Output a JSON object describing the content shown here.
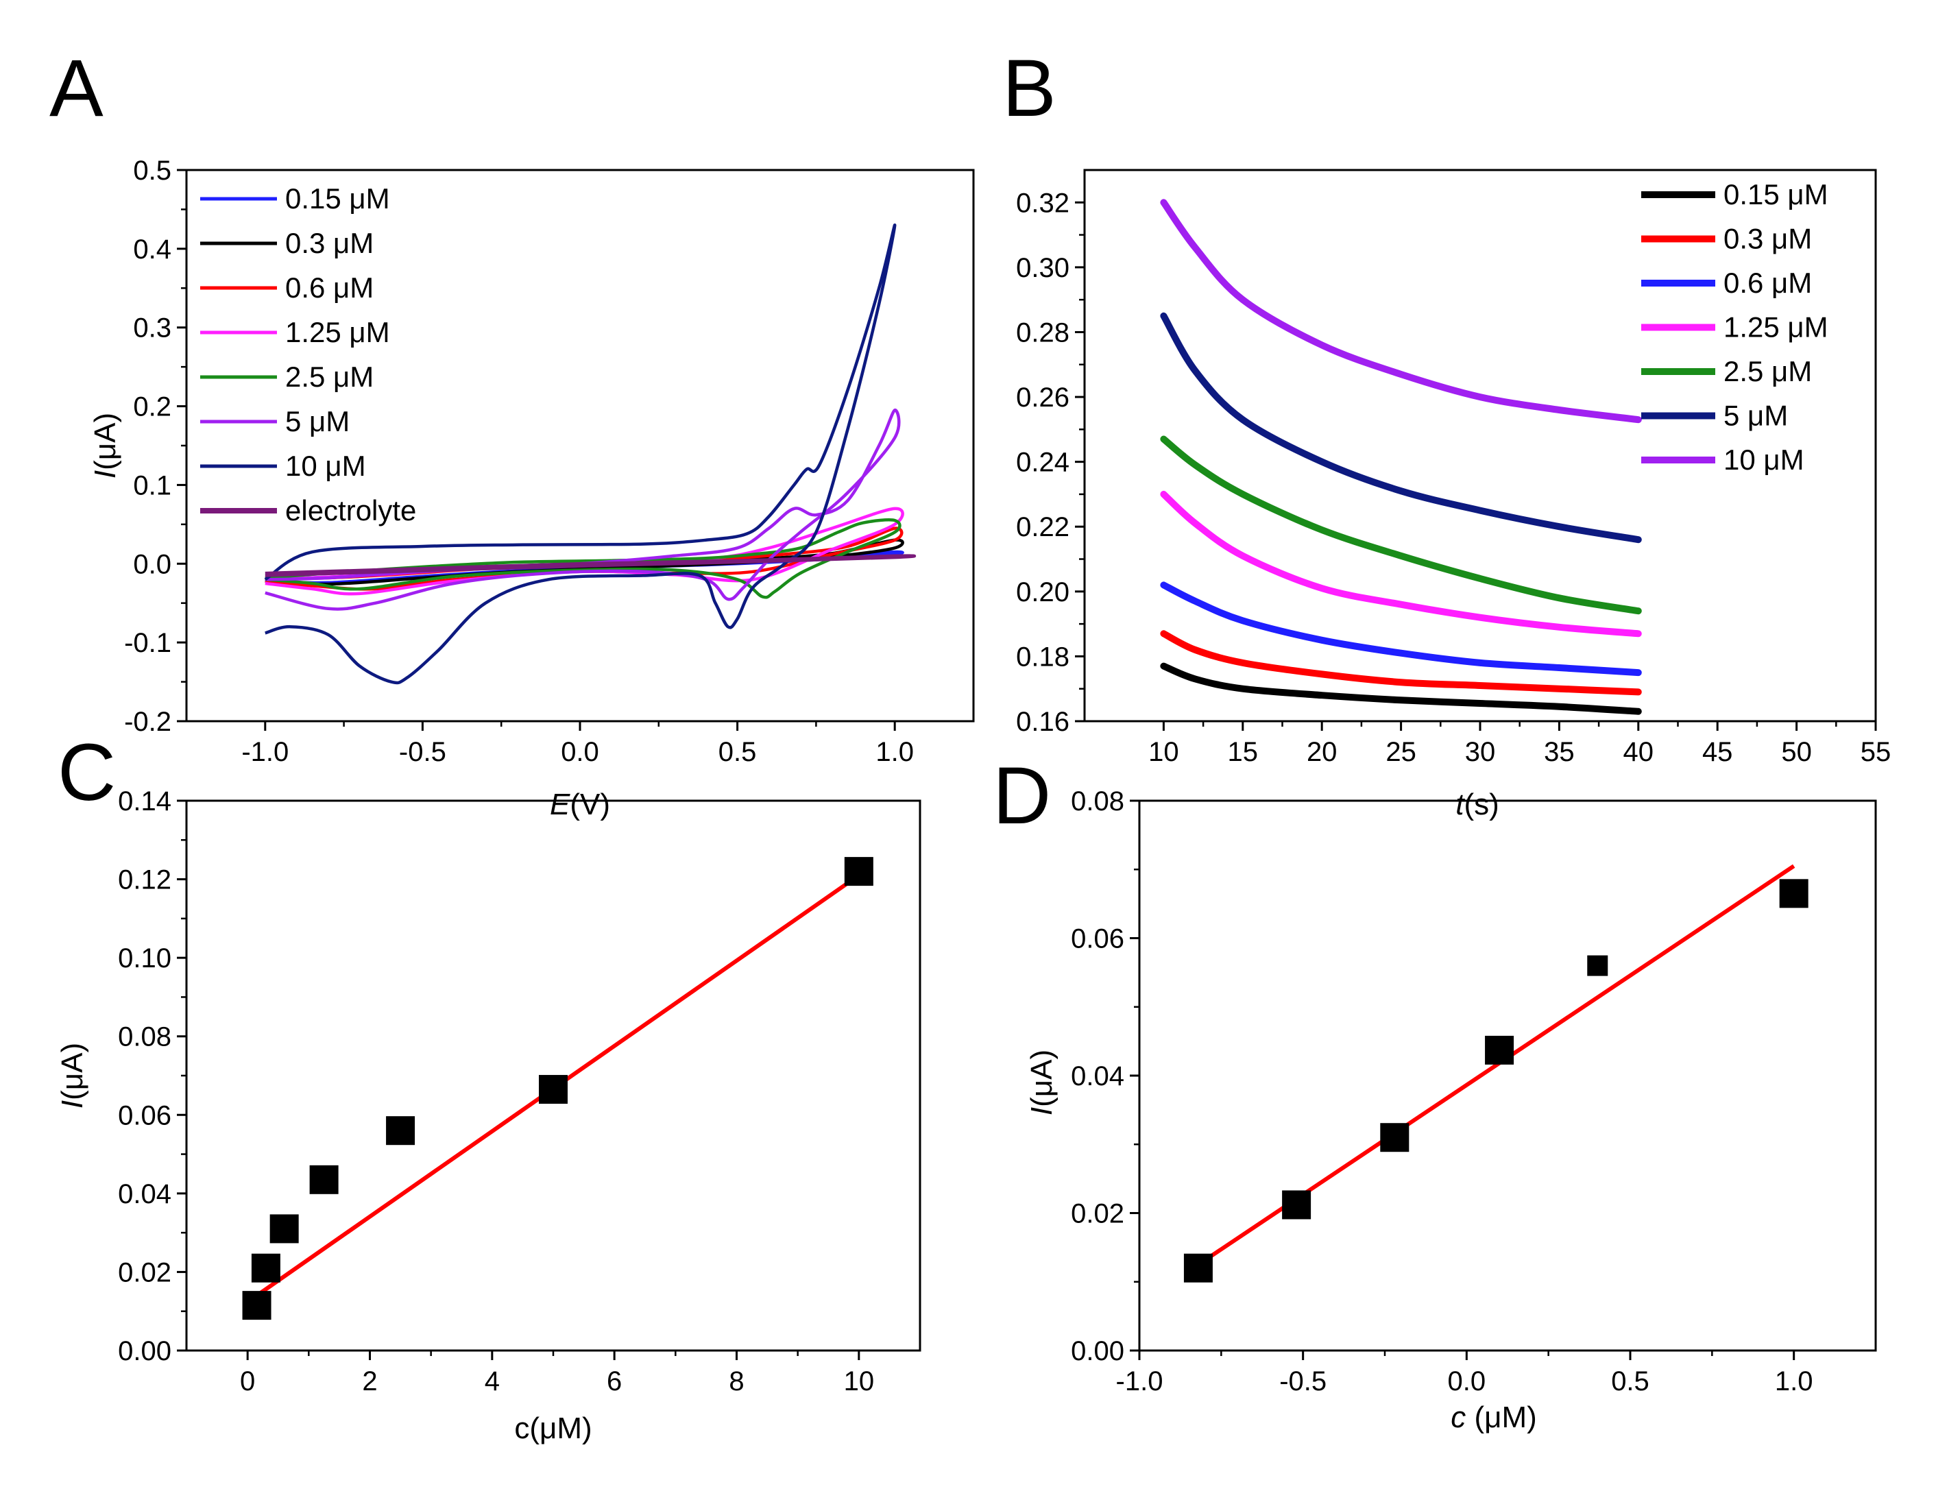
{
  "panels": {
    "A": {
      "letter": "A"
    },
    "B": {
      "letter": "B"
    },
    "C": {
      "letter": "C"
    },
    "D": {
      "letter": "D"
    }
  },
  "chart_data": [
    {
      "id": "A",
      "type": "line",
      "title": "",
      "xlabel_italic": "E",
      "xlabel_rest": "(V)",
      "ylabel_italic": "I",
      "ylabel_rest": "(μA)",
      "xlim": [
        -1.25,
        1.25
      ],
      "ylim": [
        -0.2,
        0.5
      ],
      "xticks": [
        -1.0,
        -0.5,
        0.0,
        0.5,
        1.0
      ],
      "xtick_labels": [
        "-1.0",
        "-0.5",
        "0.0",
        "0.5",
        "1.0"
      ],
      "yticks": [
        -0.2,
        -0.1,
        0.0,
        0.1,
        0.2,
        0.3,
        0.4,
        0.5
      ],
      "ytick_labels": [
        "-0.2",
        "-0.1",
        "0.0",
        "0.1",
        "0.2",
        "0.3",
        "0.4",
        "0.5"
      ],
      "legend_position": "top-left",
      "series": [
        {
          "name": "0.15 μM",
          "color": "#1f1fff",
          "x": [
            -1.0,
            -0.7,
            -0.4,
            0.0,
            0.4,
            0.6,
            0.8,
            1.0,
            1.0,
            0.8,
            0.5,
            0.2,
            -0.2,
            -0.5,
            -0.8,
            -1.0
          ],
          "y": [
            -0.02,
            -0.015,
            -0.006,
            0.0,
            0.004,
            0.006,
            0.01,
            0.015,
            0.012,
            0.006,
            0.0,
            -0.004,
            -0.009,
            -0.016,
            -0.024,
            -0.022
          ]
        },
        {
          "name": "0.3 μM",
          "color": "#000000",
          "x": [
            -1.0,
            -0.7,
            -0.4,
            0.0,
            0.4,
            0.6,
            0.8,
            1.0,
            1.0,
            0.8,
            0.5,
            0.2,
            -0.2,
            -0.5,
            -0.8,
            -1.0
          ],
          "y": [
            -0.02,
            -0.016,
            -0.006,
            0.0,
            0.004,
            0.007,
            0.013,
            0.03,
            0.02,
            0.009,
            0.001,
            -0.004,
            -0.01,
            -0.018,
            -0.026,
            -0.022
          ]
        },
        {
          "name": "0.6 μM",
          "color": "#ff0000",
          "x": [
            -1.0,
            -0.8,
            -0.6,
            -0.3,
            0.0,
            0.4,
            0.65,
            0.85,
            1.0,
            1.0,
            0.8,
            0.55,
            0.3,
            0.0,
            -0.4,
            -0.65,
            -0.85,
            -1.0
          ],
          "y": [
            -0.02,
            -0.018,
            -0.014,
            -0.006,
            0.0,
            0.005,
            0.012,
            0.022,
            0.045,
            0.03,
            0.012,
            -0.01,
            -0.012,
            -0.01,
            -0.02,
            -0.032,
            -0.028,
            -0.022
          ]
        },
        {
          "name": "1.25 μM",
          "color": "#ff1fff",
          "x": [
            -1.0,
            -0.8,
            -0.6,
            -0.3,
            0.0,
            0.4,
            0.6,
            0.8,
            1.0,
            1.0,
            0.8,
            0.55,
            0.3,
            0.0,
            -0.4,
            -0.7,
            -0.85,
            -1.0
          ],
          "y": [
            -0.02,
            -0.017,
            -0.013,
            -0.005,
            0.0,
            0.006,
            0.02,
            0.045,
            0.07,
            0.05,
            0.018,
            -0.02,
            -0.014,
            -0.01,
            -0.022,
            -0.038,
            -0.032,
            -0.025
          ]
        },
        {
          "name": "2.5 μM",
          "color": "#1a8c1a",
          "x": [
            -1.0,
            -0.8,
            -0.5,
            -0.2,
            0.1,
            0.4,
            0.55,
            0.7,
            0.82,
            0.9,
            1.0,
            1.0,
            0.85,
            0.7,
            0.62,
            0.58,
            0.5,
            0.3,
            0.0,
            -0.4,
            -0.7,
            -0.85,
            -1.0
          ],
          "y": [
            -0.018,
            -0.012,
            -0.004,
            0.002,
            0.004,
            0.007,
            0.012,
            0.02,
            0.04,
            0.052,
            0.055,
            0.04,
            0.015,
            -0.012,
            -0.035,
            -0.042,
            -0.02,
            -0.008,
            -0.008,
            -0.016,
            -0.032,
            -0.025,
            -0.02
          ]
        },
        {
          "name": "5 μM",
          "color": "#a020f0",
          "x": [
            -1.0,
            -0.8,
            -0.5,
            0.0,
            0.3,
            0.5,
            0.6,
            0.68,
            0.75,
            0.85,
            0.95,
            1.0,
            1.0,
            0.85,
            0.7,
            0.6,
            0.52,
            0.47,
            0.4,
            0.2,
            -0.1,
            -0.4,
            -0.65,
            -0.8,
            -1.0
          ],
          "y": [
            -0.02,
            -0.018,
            -0.01,
            0.0,
            0.01,
            0.02,
            0.045,
            0.07,
            0.062,
            0.08,
            0.15,
            0.195,
            0.16,
            0.09,
            0.04,
            0.005,
            -0.03,
            -0.045,
            -0.02,
            -0.01,
            -0.012,
            -0.025,
            -0.05,
            -0.057,
            -0.037
          ]
        },
        {
          "name": "10 μM",
          "color": "#0d1a80",
          "x": [
            -1.0,
            -0.85,
            -0.5,
            -0.2,
            0.2,
            0.4,
            0.53,
            0.6,
            0.68,
            0.72,
            0.76,
            0.85,
            0.95,
            1.0,
            0.95,
            0.85,
            0.75,
            0.65,
            0.55,
            0.5,
            0.47,
            0.43,
            0.38,
            0.2,
            -0.1,
            -0.3,
            -0.45,
            -0.55,
            -0.6,
            -0.7,
            -0.8,
            -0.92,
            -1.0
          ],
          "y": [
            -0.02,
            0.015,
            0.022,
            0.024,
            0.025,
            0.03,
            0.038,
            0.06,
            0.1,
            0.12,
            0.125,
            0.22,
            0.35,
            0.43,
            0.33,
            0.17,
            0.04,
            0.0,
            -0.03,
            -0.07,
            -0.08,
            -0.05,
            -0.015,
            -0.015,
            -0.02,
            -0.05,
            -0.11,
            -0.145,
            -0.15,
            -0.13,
            -0.09,
            -0.08,
            -0.088
          ]
        },
        {
          "name": "electrolyte",
          "color": "#7a1a7a",
          "x": [
            -1.0,
            -0.5,
            0.0,
            0.5,
            1.0,
            1.0,
            0.5,
            0.0,
            -0.5,
            -1.0
          ],
          "y": [
            -0.012,
            -0.006,
            0.0,
            0.004,
            0.01,
            0.008,
            0.002,
            -0.003,
            -0.009,
            -0.015
          ]
        }
      ]
    },
    {
      "id": "B",
      "type": "line",
      "title": "",
      "xlabel_italic": "t",
      "xlabel_rest": "(s)",
      "xlim": [
        5,
        55
      ],
      "ylim": [
        0.16,
        0.33
      ],
      "xticks": [
        10,
        15,
        20,
        25,
        30,
        35,
        40,
        45,
        50,
        55
      ],
      "xtick_labels": [
        "10",
        "15",
        "20",
        "25",
        "30",
        "35",
        "40",
        "45",
        "50",
        "55"
      ],
      "yticks": [
        0.16,
        0.18,
        0.2,
        0.22,
        0.24,
        0.26,
        0.28,
        0.3,
        0.32
      ],
      "ytick_labels": [
        "0.16",
        "0.18",
        "0.20",
        "0.22",
        "0.24",
        "0.26",
        "0.28",
        "0.30",
        "0.32"
      ],
      "legend_position": "top-right",
      "series": [
        {
          "name": "0.15 μM",
          "color": "#000000",
          "x": [
            10,
            12,
            15,
            20,
            25,
            30,
            35,
            40
          ],
          "y": [
            0.177,
            0.173,
            0.17,
            0.168,
            0.1665,
            0.1655,
            0.1645,
            0.163
          ]
        },
        {
          "name": "0.3 μM",
          "color": "#ff0000",
          "x": [
            10,
            12,
            15,
            20,
            25,
            30,
            35,
            40
          ],
          "y": [
            0.187,
            0.182,
            0.178,
            0.1745,
            0.172,
            0.171,
            0.17,
            0.169
          ]
        },
        {
          "name": "0.6 μM",
          "color": "#1f1fff",
          "x": [
            10,
            12,
            15,
            20,
            25,
            30,
            35,
            40
          ],
          "y": [
            0.202,
            0.197,
            0.191,
            0.185,
            0.181,
            0.178,
            0.1765,
            0.175
          ]
        },
        {
          "name": "1.25 μM",
          "color": "#ff1fff",
          "x": [
            10,
            12,
            15,
            20,
            25,
            30,
            35,
            40
          ],
          "y": [
            0.23,
            0.221,
            0.211,
            0.201,
            0.196,
            0.192,
            0.189,
            0.187
          ]
        },
        {
          "name": "2.5 μM",
          "color": "#1a8c1a",
          "x": [
            10,
            12,
            15,
            20,
            25,
            30,
            35,
            40
          ],
          "y": [
            0.247,
            0.239,
            0.23,
            0.219,
            0.211,
            0.204,
            0.198,
            0.194
          ]
        },
        {
          "name": "5 μM",
          "color": "#0d1a80",
          "x": [
            10,
            12,
            15,
            20,
            25,
            30,
            35,
            40
          ],
          "y": [
            0.285,
            0.268,
            0.253,
            0.24,
            0.231,
            0.225,
            0.22,
            0.216
          ]
        },
        {
          "name": "10 μM",
          "color": "#a020f0",
          "x": [
            10,
            12,
            15,
            20,
            25,
            30,
            35,
            40
          ],
          "y": [
            0.32,
            0.306,
            0.29,
            0.276,
            0.267,
            0.26,
            0.256,
            0.253
          ]
        }
      ]
    },
    {
      "id": "C",
      "type": "scatter",
      "title": "",
      "xlabel_italic": "",
      "xlabel_rest": "c(μM)",
      "ylabel_italic": "I",
      "ylabel_rest": "(μA)",
      "xlim": [
        -1,
        11
      ],
      "ylim": [
        0.0,
        0.14
      ],
      "xticks": [
        0,
        2,
        4,
        6,
        8,
        10
      ],
      "xtick_labels": [
        "0",
        "2",
        "4",
        "6",
        "8",
        "10"
      ],
      "yticks": [
        0.0,
        0.02,
        0.04,
        0.06,
        0.08,
        0.1,
        0.12,
        0.14
      ],
      "ytick_labels": [
        "0.00",
        "0.02",
        "0.04",
        "0.06",
        "0.08",
        "0.10",
        "0.12",
        "0.14"
      ],
      "points": {
        "x": [
          0.15,
          0.3,
          0.6,
          1.25,
          2.5,
          5,
          10
        ],
        "y": [
          0.0115,
          0.021,
          0.031,
          0.0435,
          0.056,
          0.0665,
          0.122
        ]
      },
      "fit": {
        "color": "#ff0000",
        "x": [
          0.15,
          10
        ],
        "y": [
          0.014,
          0.121
        ]
      }
    },
    {
      "id": "D",
      "type": "scatter",
      "title": "",
      "xlabel_italic": "c",
      "xlabel_rest": " (μM)",
      "ylabel_italic": "I",
      "ylabel_rest": "(μA)",
      "xlim": [
        -1.0,
        1.25
      ],
      "ylim": [
        0.0,
        0.08
      ],
      "xticks": [
        -1.0,
        -0.5,
        0.0,
        0.5,
        1.0
      ],
      "xtick_labels": [
        "-1.0",
        "-0.5",
        "0.0",
        "0.5",
        "1.0"
      ],
      "yticks": [
        0.0,
        0.02,
        0.04,
        0.06,
        0.08
      ],
      "ytick_labels": [
        "0.00",
        "0.02",
        "0.04",
        "0.06",
        "0.08"
      ],
      "points": {
        "x": [
          -0.82,
          -0.52,
          -0.22,
          0.1,
          0.4,
          1.0
        ],
        "y": [
          0.012,
          0.0212,
          0.031,
          0.0437,
          0.056,
          0.0665
        ]
      },
      "fit": {
        "color": "#ff0000",
        "x": [
          -0.82,
          1.0
        ],
        "y": [
          0.0125,
          0.0705
        ]
      }
    }
  ]
}
